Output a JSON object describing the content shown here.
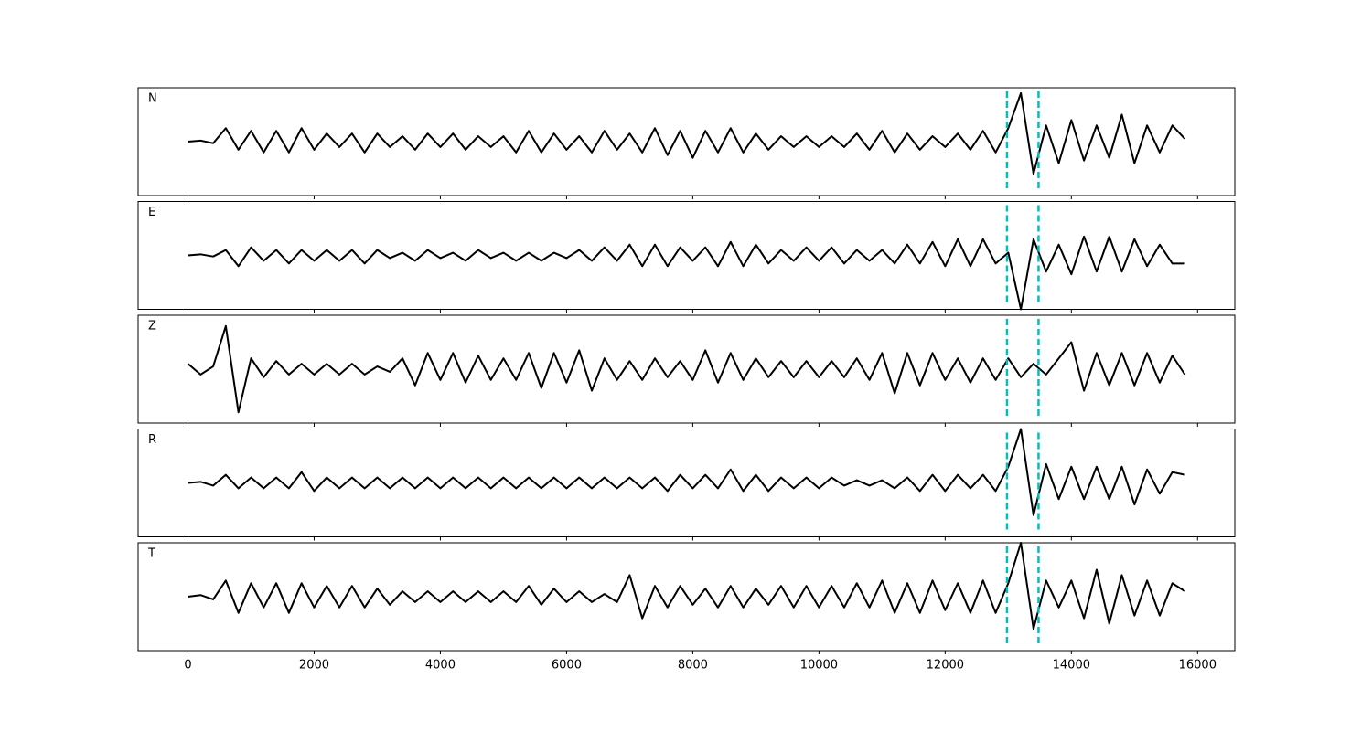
{
  "chart_data": {
    "type": "line",
    "x": [
      0,
      200,
      400,
      600,
      800,
      1000,
      1200,
      1400,
      1600,
      1800,
      2000,
      2200,
      2400,
      2600,
      2800,
      3000,
      3200,
      3400,
      3600,
      3800,
      4000,
      4200,
      4400,
      4600,
      4800,
      5000,
      5200,
      5400,
      5600,
      5800,
      6000,
      6200,
      6400,
      6600,
      6800,
      7000,
      7200,
      7400,
      7600,
      7800,
      8000,
      8200,
      8400,
      8600,
      8800,
      9000,
      9200,
      9400,
      9600,
      9800,
      10000,
      10200,
      10400,
      10600,
      10800,
      11000,
      11200,
      11400,
      11600,
      11800,
      12000,
      12200,
      12400,
      12600,
      12800,
      13000,
      13200,
      13400,
      13600,
      13800,
      14000,
      14200,
      14400,
      14600,
      14800,
      15000,
      15200,
      15400,
      15600,
      15800
    ],
    "xlim": [
      -790,
      16590
    ],
    "xticks": [
      0,
      2000,
      4000,
      6000,
      8000,
      10000,
      12000,
      14000,
      16000
    ],
    "ylim": [
      -1,
      1
    ],
    "vlines": [
      12980,
      13480
    ],
    "vline_color": "#00bfbf",
    "series": [
      {
        "name": "N",
        "color": "#000000",
        "values": [
          0,
          0.02,
          -0.03,
          0.25,
          -0.15,
          0.2,
          -0.2,
          0.2,
          -0.2,
          0.25,
          -0.15,
          0.15,
          -0.1,
          0.15,
          -0.2,
          0.15,
          -0.1,
          0.1,
          -0.15,
          0.15,
          -0.1,
          0.15,
          -0.15,
          0.1,
          -0.1,
          0.1,
          -0.2,
          0.2,
          -0.2,
          0.15,
          -0.15,
          0.1,
          -0.2,
          0.2,
          -0.15,
          0.15,
          -0.2,
          0.25,
          -0.25,
          0.2,
          -0.3,
          0.2,
          -0.2,
          0.25,
          -0.2,
          0.15,
          -0.15,
          0.1,
          -0.1,
          0.1,
          -0.1,
          0.1,
          -0.1,
          0.15,
          -0.15,
          0.2,
          -0.2,
          0.15,
          -0.15,
          0.1,
          -0.1,
          0.15,
          -0.15,
          0.2,
          -0.2,
          0.25,
          0.9,
          -0.6,
          0.3,
          -0.4,
          0.4,
          -0.35,
          0.3,
          -0.3,
          0.5,
          -0.4,
          0.3,
          -0.2,
          0.3,
          0.05
        ]
      },
      {
        "name": "E",
        "color": "#000000",
        "values": [
          0,
          0.02,
          -0.02,
          0.1,
          -0.2,
          0.15,
          -0.1,
          0.1,
          -0.15,
          0.1,
          -0.1,
          0.1,
          -0.1,
          0.1,
          -0.15,
          0.1,
          -0.05,
          0.05,
          -0.1,
          0.1,
          -0.05,
          0.05,
          -0.1,
          0.1,
          -0.05,
          0.05,
          -0.1,
          0.05,
          -0.1,
          0.05,
          -0.05,
          0.1,
          -0.1,
          0.15,
          -0.1,
          0.2,
          -0.2,
          0.2,
          -0.2,
          0.15,
          -0.1,
          0.15,
          -0.2,
          0.25,
          -0.2,
          0.2,
          -0.15,
          0.1,
          -0.1,
          0.15,
          -0.1,
          0.15,
          -0.15,
          0.1,
          -0.1,
          0.1,
          -0.15,
          0.2,
          -0.15,
          0.25,
          -0.2,
          0.3,
          -0.2,
          0.3,
          -0.15,
          0.05,
          -1.0,
          0.3,
          -0.3,
          0.2,
          -0.35,
          0.35,
          -0.3,
          0.35,
          -0.3,
          0.3,
          -0.2,
          0.2,
          -0.15,
          -0.15
        ]
      },
      {
        "name": "Z",
        "color": "#000000",
        "values": [
          0.1,
          -0.1,
          0.05,
          0.8,
          -0.8,
          0.2,
          -0.15,
          0.15,
          -0.1,
          0.1,
          -0.1,
          0.1,
          -0.1,
          0.1,
          -0.1,
          0.05,
          -0.05,
          0.2,
          -0.3,
          0.3,
          -0.2,
          0.3,
          -0.25,
          0.25,
          -0.2,
          0.2,
          -0.2,
          0.3,
          -0.35,
          0.3,
          -0.25,
          0.35,
          -0.4,
          0.2,
          -0.2,
          0.15,
          -0.2,
          0.2,
          -0.15,
          0.15,
          -0.2,
          0.35,
          -0.25,
          0.3,
          -0.2,
          0.2,
          -0.15,
          0.15,
          -0.15,
          0.15,
          -0.15,
          0.15,
          -0.15,
          0.2,
          -0.2,
          0.3,
          -0.45,
          0.3,
          -0.3,
          0.3,
          -0.2,
          0.2,
          -0.25,
          0.2,
          -0.2,
          0.2,
          -0.15,
          0.1,
          -0.1,
          0.2,
          0.5,
          -0.4,
          0.3,
          -0.3,
          0.3,
          -0.3,
          0.3,
          -0.25,
          0.25,
          -0.1
        ]
      },
      {
        "name": "R",
        "color": "#000000",
        "values": [
          0,
          0.02,
          -0.05,
          0.15,
          -0.1,
          0.1,
          -0.1,
          0.1,
          -0.1,
          0.2,
          -0.15,
          0.1,
          -0.1,
          0.1,
          -0.1,
          0.1,
          -0.1,
          0.1,
          -0.1,
          0.1,
          -0.1,
          0.1,
          -0.1,
          0.1,
          -0.1,
          0.1,
          -0.1,
          0.1,
          -0.1,
          0.1,
          -0.1,
          0.1,
          -0.1,
          0.1,
          -0.1,
          0.1,
          -0.1,
          0.1,
          -0.15,
          0.15,
          -0.1,
          0.15,
          -0.1,
          0.25,
          -0.15,
          0.15,
          -0.15,
          0.1,
          -0.1,
          0.1,
          -0.1,
          0.1,
          -0.05,
          0.05,
          -0.05,
          0.05,
          -0.1,
          0.1,
          -0.15,
          0.15,
          -0.15,
          0.15,
          -0.1,
          0.15,
          -0.15,
          0.3,
          1.0,
          -0.6,
          0.35,
          -0.3,
          0.3,
          -0.3,
          0.3,
          -0.3,
          0.3,
          -0.4,
          0.25,
          -0.2,
          0.2,
          0.15
        ]
      },
      {
        "name": "T",
        "color": "#000000",
        "values": [
          0,
          0.03,
          -0.05,
          0.3,
          -0.3,
          0.25,
          -0.2,
          0.25,
          -0.3,
          0.25,
          -0.2,
          0.2,
          -0.2,
          0.2,
          -0.2,
          0.15,
          -0.15,
          0.1,
          -0.1,
          0.1,
          -0.1,
          0.1,
          -0.1,
          0.1,
          -0.1,
          0.1,
          -0.1,
          0.2,
          -0.15,
          0.15,
          -0.1,
          0.1,
          -0.1,
          0.05,
          -0.1,
          0.4,
          -0.4,
          0.2,
          -0.2,
          0.2,
          -0.15,
          0.15,
          -0.2,
          0.2,
          -0.2,
          0.15,
          -0.15,
          0.2,
          -0.2,
          0.2,
          -0.2,
          0.2,
          -0.2,
          0.25,
          -0.2,
          0.3,
          -0.3,
          0.25,
          -0.3,
          0.3,
          -0.25,
          0.25,
          -0.3,
          0.3,
          -0.3,
          0.25,
          1.0,
          -0.6,
          0.3,
          -0.2,
          0.3,
          -0.4,
          0.5,
          -0.5,
          0.4,
          -0.35,
          0.3,
          -0.35,
          0.25,
          0.1
        ]
      }
    ]
  }
}
